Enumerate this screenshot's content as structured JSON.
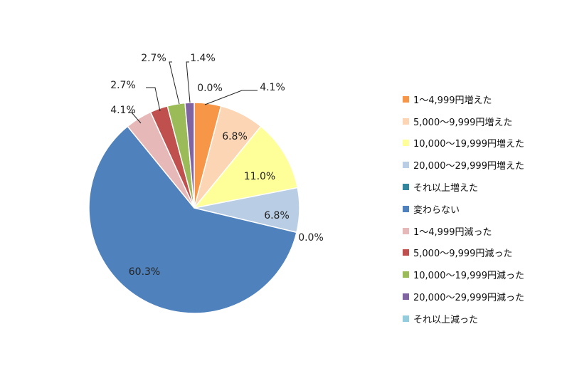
{
  "chart_data": {
    "type": "pie",
    "start_angle_deg": 0,
    "direction": "clockwise",
    "legend_position": "right",
    "slices": [
      {
        "label": "1～4,999円増えた",
        "value": 4.1,
        "value_label": "4.1%",
        "color": "#F79646"
      },
      {
        "label": "5,000～9,999円増えた",
        "value": 6.8,
        "value_label": "6.8%",
        "color": "#FCD5B5"
      },
      {
        "label": "10,000～19,999円増えた",
        "value": 11.0,
        "value_label": "11.0%",
        "color": "#FFFF99"
      },
      {
        "label": "20,000～29,999円増えた",
        "value": 6.8,
        "value_label": "6.8%",
        "color": "#B9CDE5"
      },
      {
        "label": "それ以上増えた",
        "value": 0.0,
        "value_label": "0.0%",
        "color": "#31859C"
      },
      {
        "label": "変わらない",
        "value": 60.3,
        "value_label": "60.3%",
        "color": "#4F81BD"
      },
      {
        "label": "1～4,999円減った",
        "value": 4.1,
        "value_label": "4.1%",
        "color": "#E6B9B8"
      },
      {
        "label": "5,000～9,999円減った",
        "value": 2.7,
        "value_label": "2.7%",
        "color": "#C0504D"
      },
      {
        "label": "10,000～19,999円減った",
        "value": 2.7,
        "value_label": "2.7%",
        "color": "#9BBB59"
      },
      {
        "label": "20,000～29,999円減った",
        "value": 1.4,
        "value_label": "1.4%",
        "color": "#8064A2"
      },
      {
        "label": "それ以上減った",
        "value": 0.0,
        "value_label": "0.0%",
        "color": "#93CDDD"
      }
    ]
  }
}
